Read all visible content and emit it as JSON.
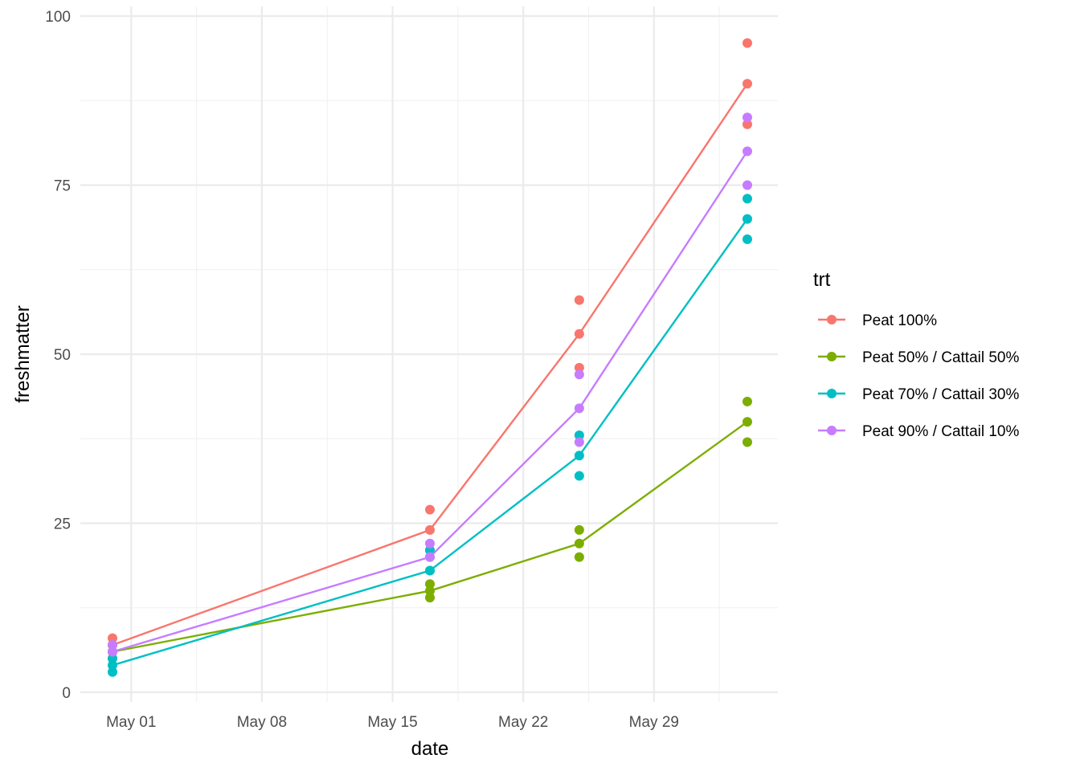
{
  "chart_data": {
    "type": "line",
    "xlabel": "date",
    "ylabel": "freshmatter",
    "x_axis": {
      "ticks": [
        "2023-05-01",
        "2023-05-08",
        "2023-05-15",
        "2023-05-22",
        "2023-05-29"
      ],
      "tick_labels": [
        "May 01",
        "May 08",
        "May 15",
        "May 22",
        "May 29"
      ],
      "range": [
        "2023-04-29",
        "2023-06-06"
      ]
    },
    "y_axis": {
      "ticks": [
        0,
        25,
        50,
        75,
        100
      ],
      "tick_labels": [
        "0",
        "25",
        "50",
        "75",
        "100"
      ],
      "range": [
        0,
        100
      ]
    },
    "grid": true,
    "legend": {
      "title": "trt",
      "position": "right"
    },
    "series": [
      {
        "name": "Peat 100%",
        "color": "#F8766D",
        "line": [
          {
            "x": "2023-04-30",
            "y": 7
          },
          {
            "x": "2023-05-17",
            "y": 24
          },
          {
            "x": "2023-05-25",
            "y": 53
          },
          {
            "x": "2023-06-03",
            "y": 90
          }
        ],
        "points": [
          {
            "x": "2023-04-30",
            "y": 8
          },
          {
            "x": "2023-04-30",
            "y": 7
          },
          {
            "x": "2023-04-30",
            "y": 6
          },
          {
            "x": "2023-05-17",
            "y": 27
          },
          {
            "x": "2023-05-17",
            "y": 24
          },
          {
            "x": "2023-05-17",
            "y": 21
          },
          {
            "x": "2023-05-25",
            "y": 58
          },
          {
            "x": "2023-05-25",
            "y": 53
          },
          {
            "x": "2023-05-25",
            "y": 48
          },
          {
            "x": "2023-06-03",
            "y": 96
          },
          {
            "x": "2023-06-03",
            "y": 90
          },
          {
            "x": "2023-06-03",
            "y": 84
          }
        ]
      },
      {
        "name": "Peat 50% / Cattail 50%",
        "color": "#7CAE00",
        "line": [
          {
            "x": "2023-04-30",
            "y": 6
          },
          {
            "x": "2023-05-17",
            "y": 15
          },
          {
            "x": "2023-05-25",
            "y": 22
          },
          {
            "x": "2023-06-03",
            "y": 40
          }
        ],
        "points": [
          {
            "x": "2023-04-30",
            "y": 7
          },
          {
            "x": "2023-04-30",
            "y": 6
          },
          {
            "x": "2023-04-30",
            "y": 5
          },
          {
            "x": "2023-05-17",
            "y": 16
          },
          {
            "x": "2023-05-17",
            "y": 15
          },
          {
            "x": "2023-05-17",
            "y": 14
          },
          {
            "x": "2023-05-25",
            "y": 24
          },
          {
            "x": "2023-05-25",
            "y": 22
          },
          {
            "x": "2023-05-25",
            "y": 20
          },
          {
            "x": "2023-06-03",
            "y": 43
          },
          {
            "x": "2023-06-03",
            "y": 40
          },
          {
            "x": "2023-06-03",
            "y": 37
          }
        ]
      },
      {
        "name": "Peat 70% / Cattail 30%",
        "color": "#00BFC4",
        "line": [
          {
            "x": "2023-04-30",
            "y": 4
          },
          {
            "x": "2023-05-17",
            "y": 18
          },
          {
            "x": "2023-05-25",
            "y": 35
          },
          {
            "x": "2023-06-03",
            "y": 70
          }
        ],
        "points": [
          {
            "x": "2023-04-30",
            "y": 5
          },
          {
            "x": "2023-04-30",
            "y": 4
          },
          {
            "x": "2023-04-30",
            "y": 3
          },
          {
            "x": "2023-05-17",
            "y": 21
          },
          {
            "x": "2023-05-17",
            "y": 18
          },
          {
            "x": "2023-05-17",
            "y": 18
          },
          {
            "x": "2023-05-25",
            "y": 38
          },
          {
            "x": "2023-05-25",
            "y": 35
          },
          {
            "x": "2023-05-25",
            "y": 32
          },
          {
            "x": "2023-06-03",
            "y": 73
          },
          {
            "x": "2023-06-03",
            "y": 70
          },
          {
            "x": "2023-06-03",
            "y": 67
          }
        ]
      },
      {
        "name": "Peat 90% / Cattail 10%",
        "color": "#C77CFF",
        "line": [
          {
            "x": "2023-04-30",
            "y": 6
          },
          {
            "x": "2023-05-17",
            "y": 20
          },
          {
            "x": "2023-05-25",
            "y": 42
          },
          {
            "x": "2023-06-03",
            "y": 80
          }
        ],
        "points": [
          {
            "x": "2023-04-30",
            "y": 7
          },
          {
            "x": "2023-04-30",
            "y": 6
          },
          {
            "x": "2023-04-30",
            "y": 6
          },
          {
            "x": "2023-05-17",
            "y": 22
          },
          {
            "x": "2023-05-17",
            "y": 20
          },
          {
            "x": "2023-05-17",
            "y": 20
          },
          {
            "x": "2023-05-25",
            "y": 47
          },
          {
            "x": "2023-05-25",
            "y": 42
          },
          {
            "x": "2023-05-25",
            "y": 37
          },
          {
            "x": "2023-06-03",
            "y": 85
          },
          {
            "x": "2023-06-03",
            "y": 80
          },
          {
            "x": "2023-06-03",
            "y": 75
          }
        ]
      }
    ]
  },
  "colors": {
    "grid_major": "#EBEBEB",
    "grid_minor": "#F2F2F2"
  }
}
